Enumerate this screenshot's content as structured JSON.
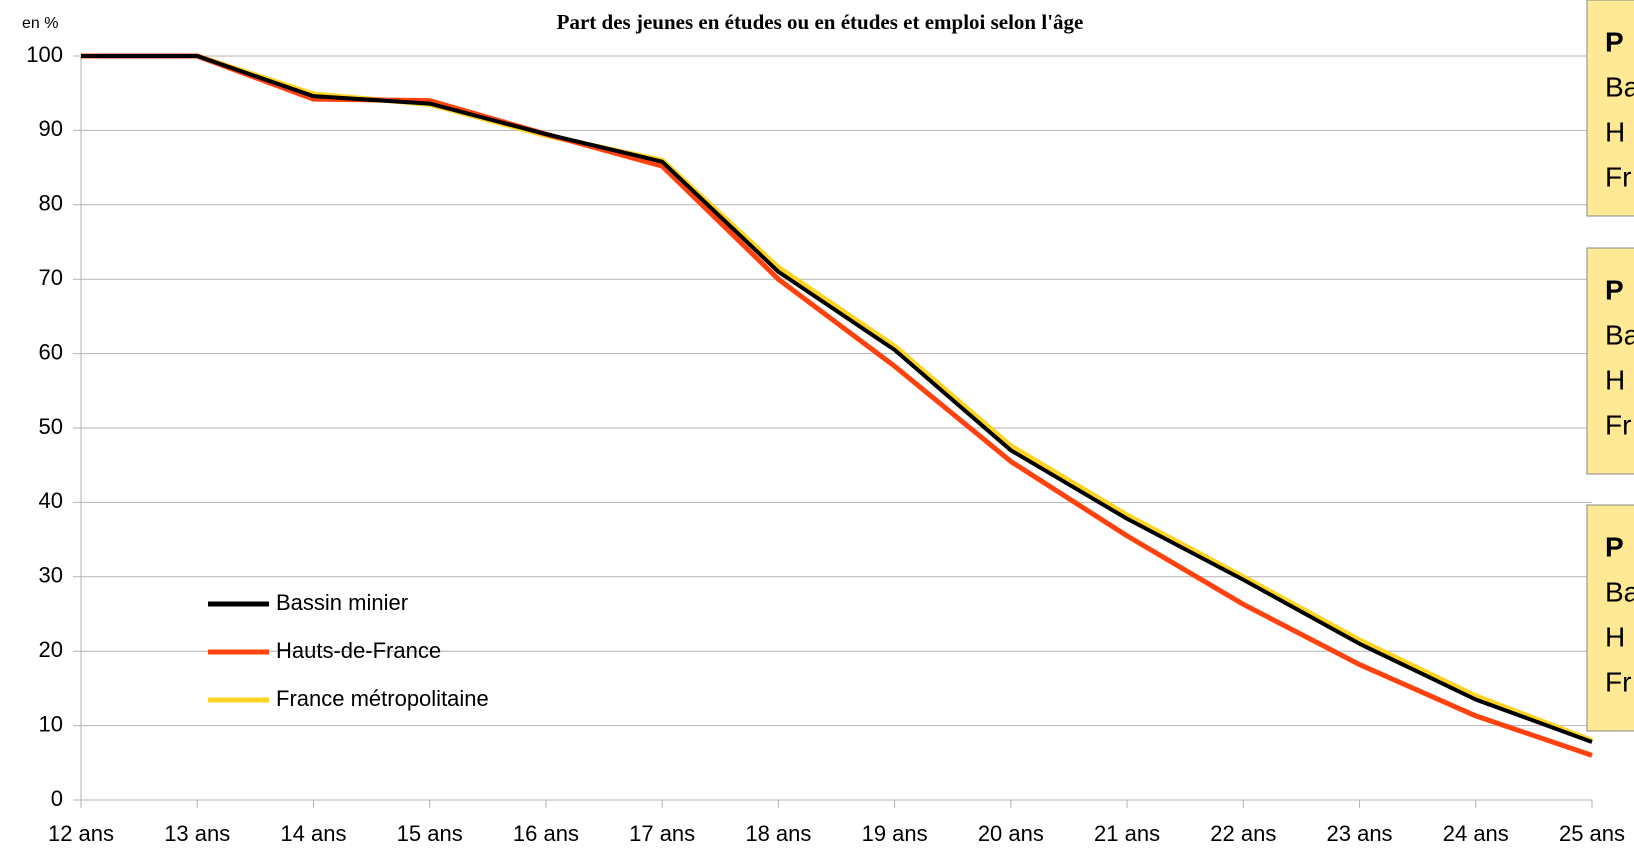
{
  "chart_data": {
    "type": "line",
    "title": "Part des jeunes en études ou en études et emploi selon l'âge",
    "y_label": "en %",
    "categories": [
      "12 ans",
      "13 ans",
      "14 ans",
      "15 ans",
      "16 ans",
      "17 ans",
      "18 ans",
      "19 ans",
      "20 ans",
      "21 ans",
      "22 ans",
      "23 ans",
      "24 ans",
      "25 ans"
    ],
    "series": [
      {
        "name": "Bassin minier",
        "color": "#000000",
        "values": [
          100,
          100,
          94.6,
          93.6,
          89.5,
          85.8,
          71,
          60.5,
          47,
          37.8,
          29.6,
          21,
          13.5,
          7.8
        ]
      },
      {
        "name": "Hauts-de-France",
        "color": "#ff420e",
        "values": [
          100,
          100,
          94.2,
          94,
          89.5,
          85.2,
          70,
          58.3,
          45.5,
          35.5,
          26.3,
          18.2,
          11.3,
          6
        ]
      },
      {
        "name": "France métropolitaine",
        "color": "#ffd320",
        "values": [
          100,
          100,
          94.9,
          93.5,
          89.3,
          86,
          71.6,
          61,
          47.6,
          38.3,
          30,
          21.5,
          14,
          8
        ]
      }
    ],
    "ylim": [
      0,
      100
    ],
    "yticks": [
      0,
      10,
      20,
      30,
      40,
      50,
      60,
      70,
      80,
      90,
      100
    ],
    "grid": true,
    "annotation_boxes": [
      [
        "P",
        "Ba",
        "H",
        "Fr"
      ],
      [
        "P",
        "Ba",
        "H",
        "Fr"
      ],
      [
        "P",
        "Ba",
        "H",
        "Fr"
      ]
    ]
  }
}
